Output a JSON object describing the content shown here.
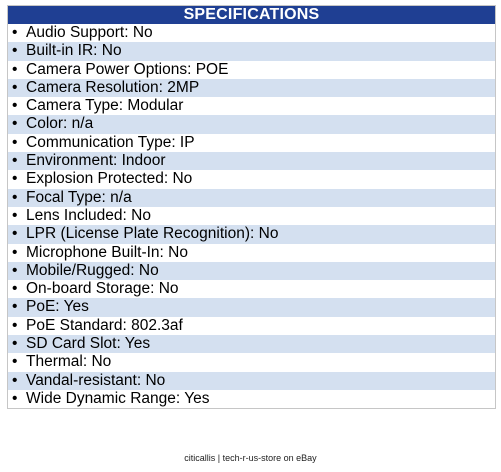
{
  "header": {
    "title": "SPECIFICATIONS"
  },
  "colors": {
    "header_bg": "#1f3f93",
    "stripe": "#d4e0f0"
  },
  "bullet": "•",
  "specs": [
    "Audio Support: No",
    "Built-in IR: No",
    "Camera Power Options: POE",
    "Camera Resolution: 2MP",
    "Camera Type: Modular",
    "Color: n/a",
    "Communication Type: IP",
    "Environment: Indoor",
    "Explosion Protected: No",
    "Focal Type: n/a",
    "Lens Included: No",
    "LPR (License Plate Recognition): No",
    "Microphone Built-In: No",
    "Mobile/Rugged: No",
    "On-board Storage: No",
    "PoE: Yes",
    "PoE Standard: 802.3af",
    "SD Card Slot: Yes",
    "Thermal: No",
    "Vandal-resistant: No",
    "Wide Dynamic Range: Yes"
  ],
  "footer": {
    "text": "citicallis | tech-r-us-store on eBay"
  }
}
